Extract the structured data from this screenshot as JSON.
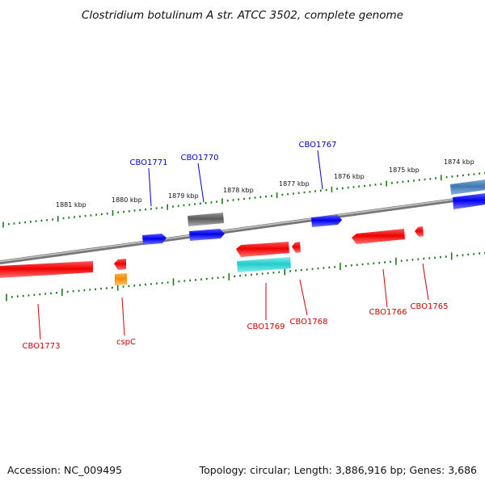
{
  "title": "Clostridium botulinum A str. ATCC 3502, complete genome",
  "footer": {
    "accession": "Accession: NC_009495",
    "summary": "Topology: circular; Length: 3,886,916 bp; Genes: 3,686"
  },
  "colors": {
    "backbone": "#8c8c8c",
    "tick": "#1a7a1a",
    "forward_label": "#0000cc",
    "reverse_label": "#cc0000"
  },
  "scale_labels": [
    "1881 kbp",
    "1880 kbp",
    "1879 kbp",
    "1878 kbp",
    "1877 kbp",
    "1876 kbp",
    "1875 kbp",
    "1874 kbp"
  ],
  "genes": [
    {
      "label": "CBO1771",
      "strand": "forward",
      "color": "#1a1ae6"
    },
    {
      "label": "CBO1770",
      "strand": "forward",
      "color": "#1a1ae6"
    },
    {
      "label": "CBO1767",
      "strand": "forward",
      "color": "#1a1ae6"
    },
    {
      "label": "CBO1773",
      "strand": "reverse",
      "color": "#ee1111"
    },
    {
      "label": "cspC",
      "strand": "reverse",
      "color": "#ee1111"
    },
    {
      "label": "CBO1769",
      "strand": "reverse",
      "color": "#ee1111"
    },
    {
      "label": "CBO1768",
      "strand": "reverse",
      "color": "#ee1111"
    },
    {
      "label": "CBO1766",
      "strand": "reverse",
      "color": "#ee1111"
    },
    {
      "label": "CBO1765",
      "strand": "reverse",
      "color": "#ee1111"
    }
  ]
}
